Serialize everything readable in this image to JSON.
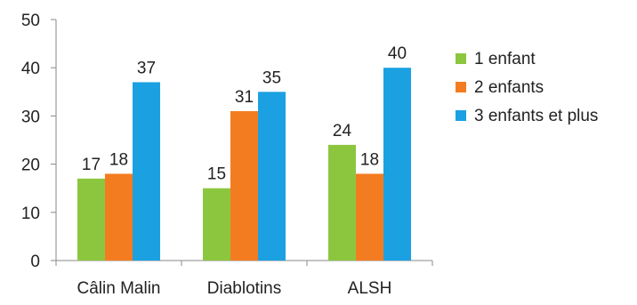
{
  "chart_data": {
    "type": "bar",
    "title": "",
    "xlabel": "",
    "ylabel": "",
    "categories": [
      "Câlin Malin",
      "Diablotins",
      "ALSH"
    ],
    "series": [
      {
        "name": "1 enfant",
        "values": [
          17,
          15,
          24
        ],
        "color": "#8cc63f"
      },
      {
        "name": "2 enfants",
        "values": [
          18,
          31,
          18
        ],
        "color": "#f47c20"
      },
      {
        "name": "3 enfants et plus",
        "values": [
          37,
          35,
          40
        ],
        "color": "#1ba1e2"
      }
    ],
    "ylim": [
      0,
      50
    ],
    "yticks": [
      0,
      10,
      20,
      30,
      40,
      50
    ],
    "grid": false,
    "legend_position": "right",
    "data_labels": true
  }
}
